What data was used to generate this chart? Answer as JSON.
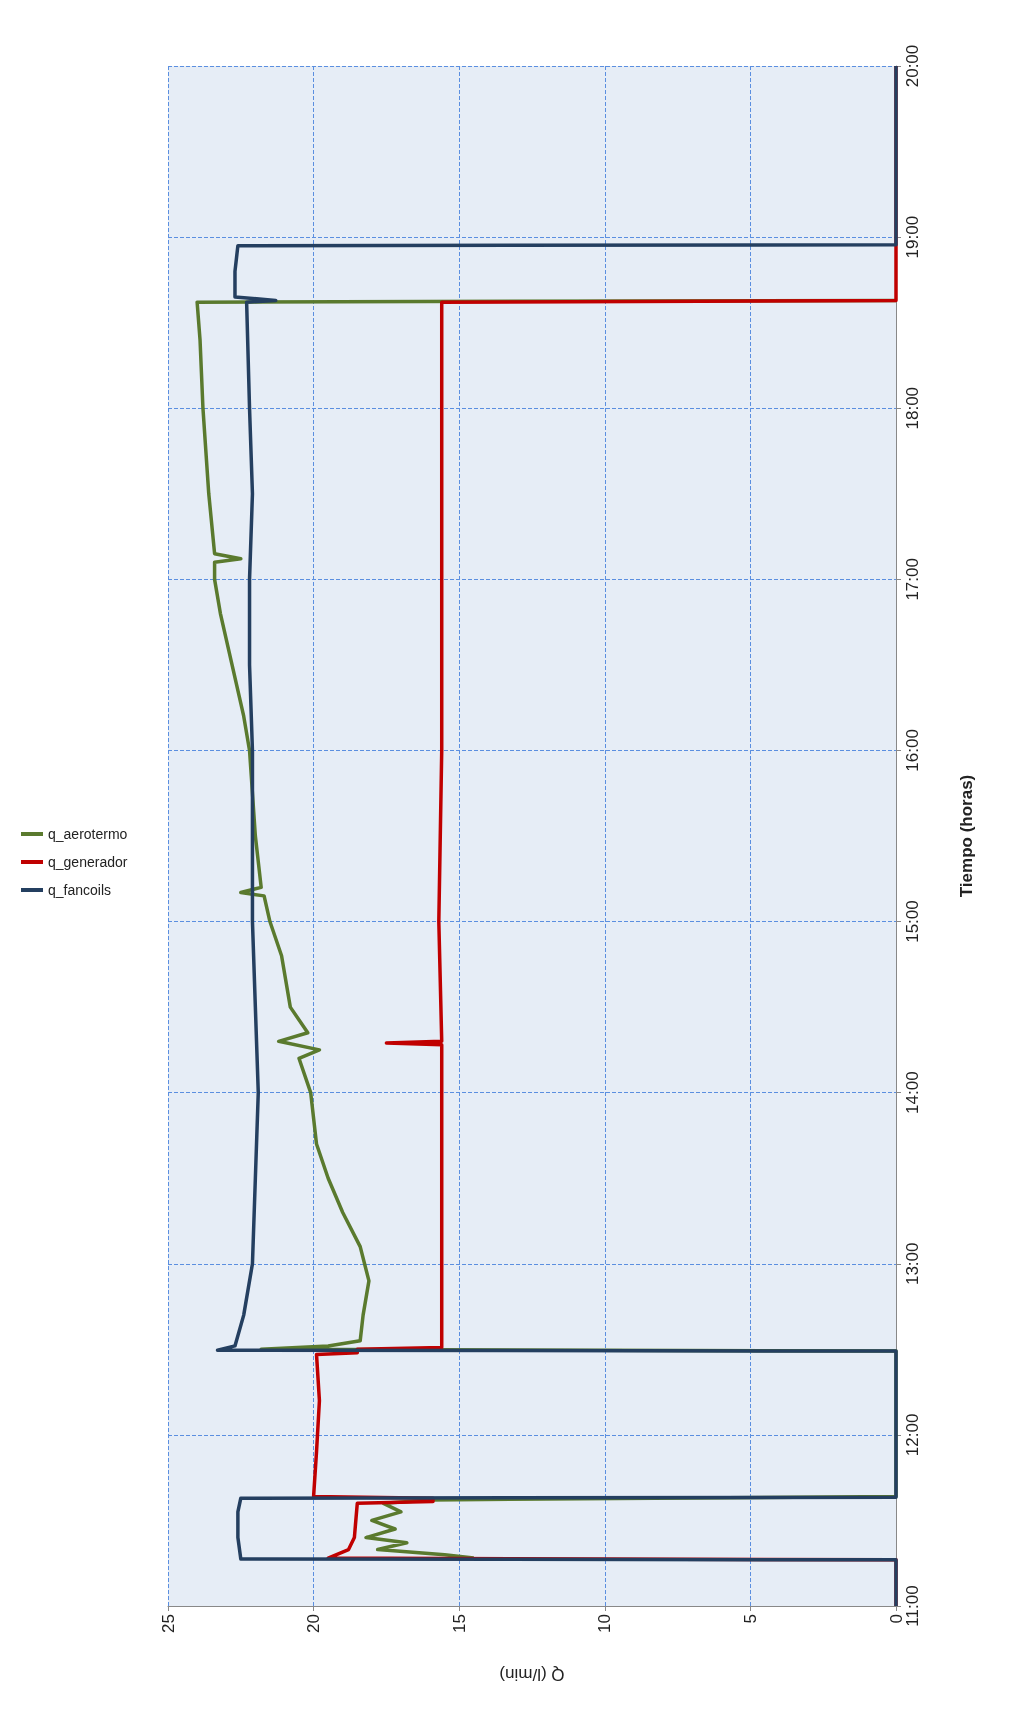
{
  "chart_data": {
    "type": "line",
    "xlabel": "Q (l/min)",
    "ylabel": "Tiempo (horas)",
    "legend": "left",
    "grid": true,
    "xlim": [
      25,
      0
    ],
    "xticks": [
      0,
      5,
      10,
      15,
      20,
      25
    ],
    "ylim": [
      11,
      20
    ],
    "yticks": [
      {
        "value": 11,
        "label": "11:00"
      },
      {
        "value": 12,
        "label": "12:00"
      },
      {
        "value": 13,
        "label": "13:00"
      },
      {
        "value": 14,
        "label": "14:00"
      },
      {
        "value": 15,
        "label": "15:00"
      },
      {
        "value": 16,
        "label": "16:00"
      },
      {
        "value": 17,
        "label": "17:00"
      },
      {
        "value": 18,
        "label": "18:00"
      },
      {
        "value": 19,
        "label": "19:00"
      },
      {
        "value": 20,
        "label": "20:00"
      }
    ],
    "series": [
      {
        "name": "q_aerotermo",
        "color": "#5a7a2e",
        "x": [
          14.5,
          15.5,
          17.8,
          16.8,
          18.2,
          17.2,
          18.0,
          17.0,
          17.6,
          16.0,
          0,
          0,
          21.8,
          19.5,
          18.4,
          18.3,
          18.1,
          18.4,
          19.0,
          19.5,
          19.9,
          20.1,
          20.5,
          19.8,
          21.2,
          20.2,
          20.8,
          21.1,
          21.5,
          21.7,
          22.5,
          21.8,
          22.0,
          22.2,
          22.4,
          22.8,
          23.2,
          23.4,
          23.4,
          22.5,
          23.4,
          23.6,
          23.8,
          23.9,
          24.0,
          0
        ],
        "values": [
          11.28,
          11.3,
          11.33,
          11.37,
          11.4,
          11.45,
          11.5,
          11.55,
          11.6,
          11.62,
          11.64,
          12.49,
          12.5,
          12.52,
          12.55,
          12.7,
          12.9,
          13.1,
          13.3,
          13.5,
          13.7,
          14.0,
          14.2,
          14.25,
          14.3,
          14.35,
          14.5,
          14.8,
          15.0,
          15.15,
          15.17,
          15.2,
          15.5,
          16.0,
          16.2,
          16.5,
          16.8,
          17.0,
          17.1,
          17.12,
          17.15,
          17.5,
          18.0,
          18.4,
          18.62,
          18.63
        ]
      },
      {
        "name": "q_generador",
        "color": "#c00000",
        "x": [
          0,
          0,
          19.5,
          18.8,
          18.6,
          18.5,
          15.9,
          15.9,
          20.0,
          19.9,
          19.8,
          19.9,
          18.5,
          18.5,
          15.6,
          15.6,
          15.6,
          15.6,
          17.5,
          15.6,
          15.7,
          15.6,
          15.6,
          15.6,
          15.6,
          0,
          0
        ],
        "values": [
          11.0,
          11.27,
          11.28,
          11.33,
          11.4,
          11.6,
          11.61,
          11.63,
          11.64,
          11.9,
          12.2,
          12.47,
          12.48,
          12.5,
          12.51,
          13.0,
          14.0,
          14.28,
          14.29,
          14.3,
          15.0,
          16.0,
          17.0,
          18.0,
          18.62,
          18.63,
          20.0
        ]
      },
      {
        "name": "q_fancoils",
        "color": "#243f60",
        "x": [
          0,
          0,
          22.5,
          22.6,
          22.6,
          22.5,
          0,
          0,
          23.3,
          22.7,
          22.4,
          22.1,
          22.0,
          21.9,
          22.0,
          22.1,
          22.1,
          22.1,
          22.2,
          22.2,
          22.1,
          22.2,
          22.3,
          21.3,
          22.7,
          22.7,
          22.6,
          0,
          0
        ],
        "values": [
          11.0,
          11.27,
          11.275,
          11.4,
          11.55,
          11.63,
          11.635,
          12.49,
          12.495,
          12.52,
          12.7,
          13.0,
          13.5,
          14.0,
          14.5,
          15.0,
          15.5,
          16.0,
          16.5,
          17.0,
          17.5,
          18.0,
          18.62,
          18.63,
          18.65,
          18.8,
          18.95,
          18.955,
          20.0
        ]
      }
    ]
  }
}
